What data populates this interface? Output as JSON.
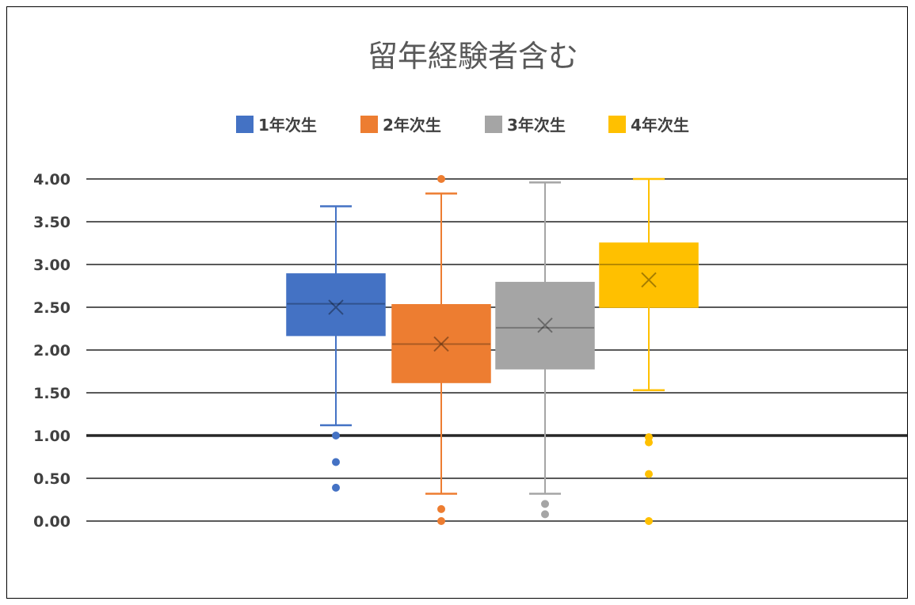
{
  "chart_data": {
    "type": "box",
    "title": "留年経験者含む",
    "ylim": [
      0,
      4
    ],
    "y_ticks": [
      "0.00",
      "0.50",
      "1.00",
      "1.50",
      "2.00",
      "2.50",
      "3.00",
      "3.50",
      "4.00"
    ],
    "legend_position": "top",
    "grid": true,
    "emphasized_gridline": 1.0,
    "series": [
      {
        "name": "1年次生",
        "color": "#4472C4",
        "min": 1.12,
        "q1": 2.17,
        "median": 2.54,
        "q3": 2.89,
        "max": 3.68,
        "mean": 2.5,
        "outliers": [
          1.0,
          0.69,
          0.39
        ]
      },
      {
        "name": "2年次生",
        "color": "#ED7D31",
        "min": 0.32,
        "q1": 1.62,
        "median": 2.07,
        "q3": 2.53,
        "max": 3.83,
        "mean": 2.07,
        "outliers": [
          4.0,
          0.14,
          0.0
        ]
      },
      {
        "name": "3年次生",
        "color": "#A5A5A5",
        "min": 0.32,
        "q1": 1.78,
        "median": 2.26,
        "q3": 2.79,
        "max": 3.96,
        "mean": 2.29,
        "outliers": [
          0.2,
          0.08
        ]
      },
      {
        "name": "4年次生",
        "color": "#FFC000",
        "min": 1.53,
        "q1": 2.5,
        "median": 3.0,
        "q3": 3.25,
        "max": 4.0,
        "mean": 2.82,
        "outliers": [
          0.98,
          0.92,
          0.55,
          0.0
        ]
      }
    ]
  }
}
